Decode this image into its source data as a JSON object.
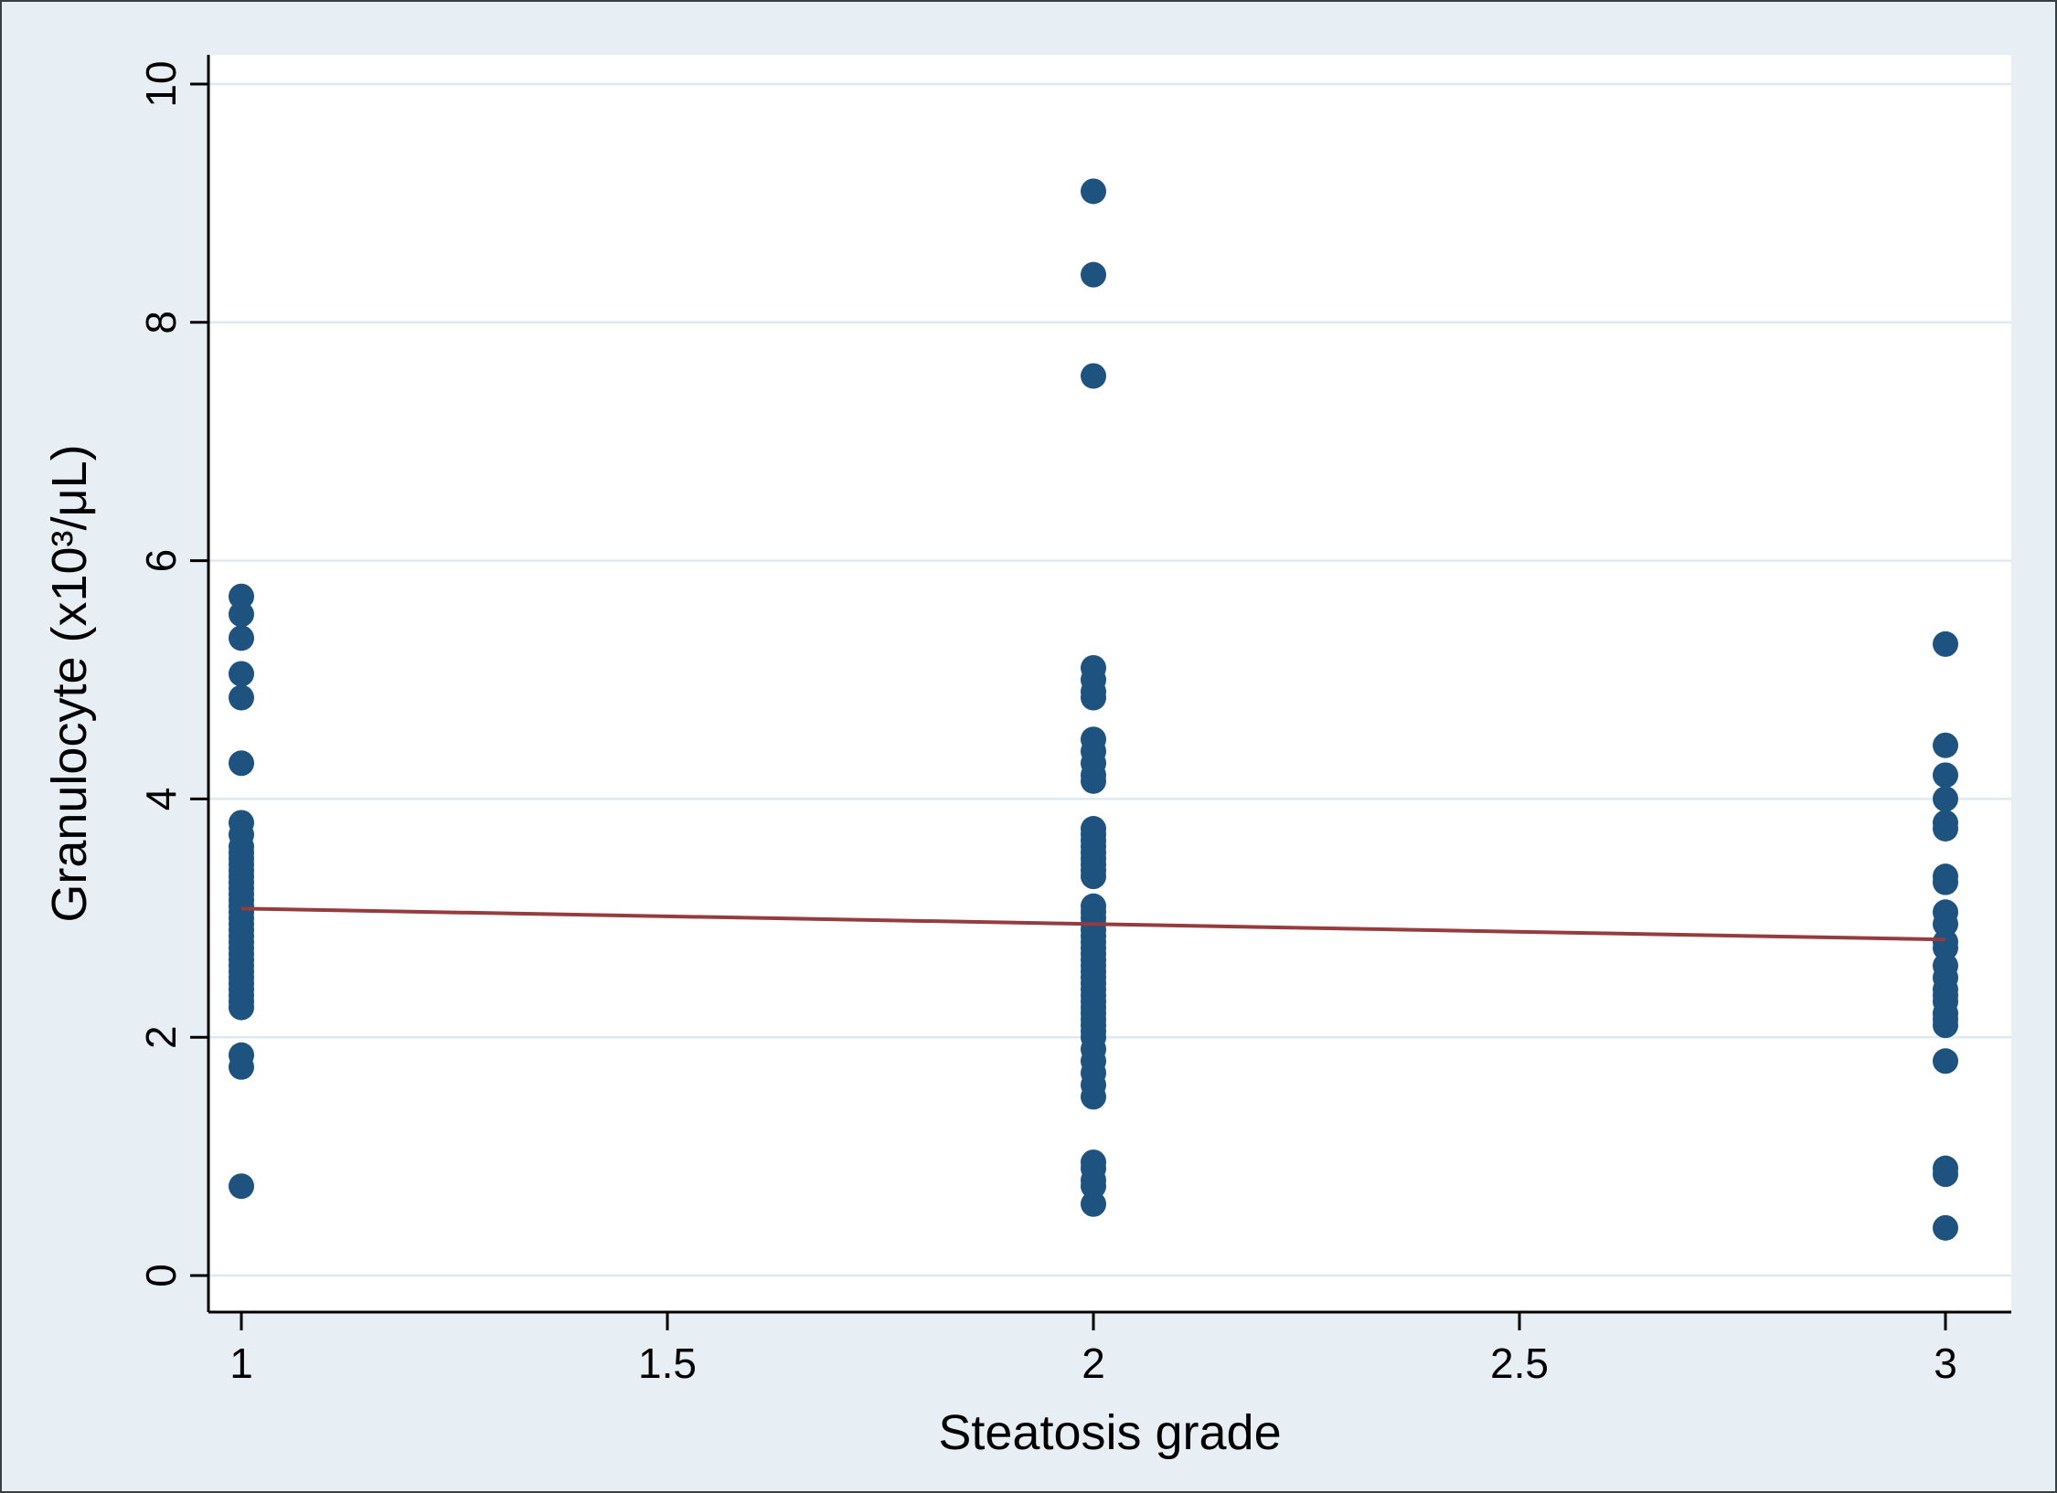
{
  "figure": {
    "background": "#e7eff5",
    "plot_background": "#ffffff",
    "grid_color": "#dde9f2",
    "axis_color": "#000000",
    "border_color": "#3a3f44"
  },
  "chart_data": {
    "type": "scatter",
    "title": "",
    "xlabel": "Steatosis grade",
    "ylabel": "Granulocyte (x10³/μL)",
    "xlim": [
      1,
      3
    ],
    "ylim": [
      0,
      10
    ],
    "x_ticks": [
      1,
      1.5,
      2,
      2.5,
      3
    ],
    "x_tick_labels": [
      "1",
      "1.5",
      "2",
      "2.5",
      "3"
    ],
    "y_ticks": [
      0,
      2,
      4,
      6,
      8,
      10
    ],
    "y_tick_labels": [
      "0",
      "2",
      "4",
      "6",
      "8",
      "10"
    ],
    "grid": "horizontal",
    "legend": "none",
    "marker_color": "#1e5380",
    "marker_radius_px": 14,
    "series": [
      {
        "name": "observations",
        "points": [
          [
            1,
            5.7
          ],
          [
            1,
            5.55
          ],
          [
            1,
            5.35
          ],
          [
            1,
            5.05
          ],
          [
            1,
            4.85
          ],
          [
            1,
            4.3
          ],
          [
            1,
            3.8
          ],
          [
            1,
            3.7
          ],
          [
            1,
            3.6
          ],
          [
            1,
            3.55
          ],
          [
            1,
            3.5
          ],
          [
            1,
            3.45
          ],
          [
            1,
            3.4
          ],
          [
            1,
            3.35
          ],
          [
            1,
            3.3
          ],
          [
            1,
            3.25
          ],
          [
            1,
            3.2
          ],
          [
            1,
            3.15
          ],
          [
            1,
            3.1
          ],
          [
            1,
            3.05
          ],
          [
            1,
            3.0
          ],
          [
            1,
            2.95
          ],
          [
            1,
            2.9
          ],
          [
            1,
            2.85
          ],
          [
            1,
            2.8
          ],
          [
            1,
            2.75
          ],
          [
            1,
            2.7
          ],
          [
            1,
            2.65
          ],
          [
            1,
            2.6
          ],
          [
            1,
            2.55
          ],
          [
            1,
            2.5
          ],
          [
            1,
            2.45
          ],
          [
            1,
            2.4
          ],
          [
            1,
            2.35
          ],
          [
            1,
            2.3
          ],
          [
            1,
            2.25
          ],
          [
            1,
            1.85
          ],
          [
            1,
            1.75
          ],
          [
            1,
            0.75
          ],
          [
            2,
            9.1
          ],
          [
            2,
            8.4
          ],
          [
            2,
            7.55
          ],
          [
            2,
            5.1
          ],
          [
            2,
            5.0
          ],
          [
            2,
            4.9
          ],
          [
            2,
            4.85
          ],
          [
            2,
            4.5
          ],
          [
            2,
            4.4
          ],
          [
            2,
            4.3
          ],
          [
            2,
            4.2
          ],
          [
            2,
            4.15
          ],
          [
            2,
            3.75
          ],
          [
            2,
            3.7
          ],
          [
            2,
            3.65
          ],
          [
            2,
            3.6
          ],
          [
            2,
            3.55
          ],
          [
            2,
            3.5
          ],
          [
            2,
            3.45
          ],
          [
            2,
            3.4
          ],
          [
            2,
            3.35
          ],
          [
            2,
            3.1
          ],
          [
            2,
            3.05
          ],
          [
            2,
            3.0
          ],
          [
            2,
            2.95
          ],
          [
            2,
            2.9
          ],
          [
            2,
            2.85
          ],
          [
            2,
            2.8
          ],
          [
            2,
            2.75
          ],
          [
            2,
            2.7
          ],
          [
            2,
            2.65
          ],
          [
            2,
            2.6
          ],
          [
            2,
            2.55
          ],
          [
            2,
            2.5
          ],
          [
            2,
            2.45
          ],
          [
            2,
            2.4
          ],
          [
            2,
            2.35
          ],
          [
            2,
            2.3
          ],
          [
            2,
            2.25
          ],
          [
            2,
            2.2
          ],
          [
            2,
            2.15
          ],
          [
            2,
            2.1
          ],
          [
            2,
            2.05
          ],
          [
            2,
            2.0
          ],
          [
            2,
            1.9
          ],
          [
            2,
            1.8
          ],
          [
            2,
            1.7
          ],
          [
            2,
            1.6
          ],
          [
            2,
            1.5
          ],
          [
            2,
            0.95
          ],
          [
            2,
            0.9
          ],
          [
            2,
            0.8
          ],
          [
            2,
            0.75
          ],
          [
            2,
            0.6
          ],
          [
            3,
            5.3
          ],
          [
            3,
            4.45
          ],
          [
            3,
            4.2
          ],
          [
            3,
            4.0
          ],
          [
            3,
            3.8
          ],
          [
            3,
            3.75
          ],
          [
            3,
            3.35
          ],
          [
            3,
            3.3
          ],
          [
            3,
            3.05
          ],
          [
            3,
            2.95
          ],
          [
            3,
            2.8
          ],
          [
            3,
            2.75
          ],
          [
            3,
            2.6
          ],
          [
            3,
            2.5
          ],
          [
            3,
            2.4
          ],
          [
            3,
            2.35
          ],
          [
            3,
            2.3
          ],
          [
            3,
            2.2
          ],
          [
            3,
            2.15
          ],
          [
            3,
            2.1
          ],
          [
            3,
            1.8
          ],
          [
            3,
            0.9
          ],
          [
            3,
            0.85
          ],
          [
            3,
            0.4
          ]
        ]
      }
    ],
    "fit_line": {
      "x1": 1,
      "y1": 3.08,
      "x2": 3,
      "y2": 2.82,
      "color": "#943c3e"
    }
  }
}
